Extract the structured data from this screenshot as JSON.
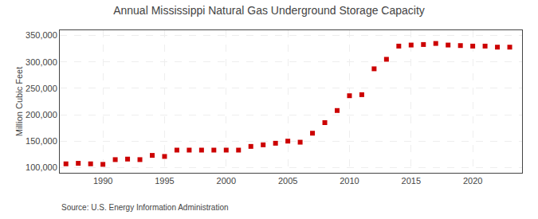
{
  "chart_data": {
    "type": "scatter",
    "title": "Annual Mississippi Natural Gas Underground Storage Capacity",
    "ylabel": "Million Cubic Feet",
    "source": "Source: U.S. Energy Information Administration",
    "x": [
      1987,
      1988,
      1989,
      1990,
      1991,
      1992,
      1993,
      1994,
      1995,
      1996,
      1997,
      1998,
      1999,
      2000,
      2001,
      2002,
      2003,
      2004,
      2005,
      2006,
      2007,
      2008,
      2009,
      2010,
      2011,
      2012,
      2013,
      2014,
      2015,
      2016,
      2017,
      2018,
      2019,
      2020,
      2021,
      2022,
      2023
    ],
    "values": [
      107000,
      108000,
      107000,
      106000,
      115000,
      116000,
      115000,
      123000,
      121000,
      133000,
      133000,
      133000,
      133000,
      133000,
      133000,
      140000,
      143000,
      146000,
      150000,
      148000,
      165000,
      185000,
      208000,
      236000,
      238000,
      287000,
      305000,
      330000,
      332000,
      333000,
      335000,
      332000,
      331000,
      330000,
      330000,
      328000,
      328000
    ],
    "color": "#cc0000",
    "marker": "square",
    "xlim": [
      1986.5,
      2024
    ],
    "xticks": [
      1990,
      1995,
      2000,
      2005,
      2010,
      2015,
      2020
    ],
    "ylim": [
      90000,
      360000
    ],
    "yticks": [
      {
        "value": 100000,
        "label": "100,000"
      },
      {
        "value": 150000,
        "label": "150,000"
      },
      {
        "value": 200000,
        "label": "200,000"
      },
      {
        "value": 250000,
        "label": "250,000"
      },
      {
        "value": 300000,
        "label": "300,000"
      },
      {
        "value": 350000,
        "label": "350,000"
      }
    ],
    "grid": true
  }
}
